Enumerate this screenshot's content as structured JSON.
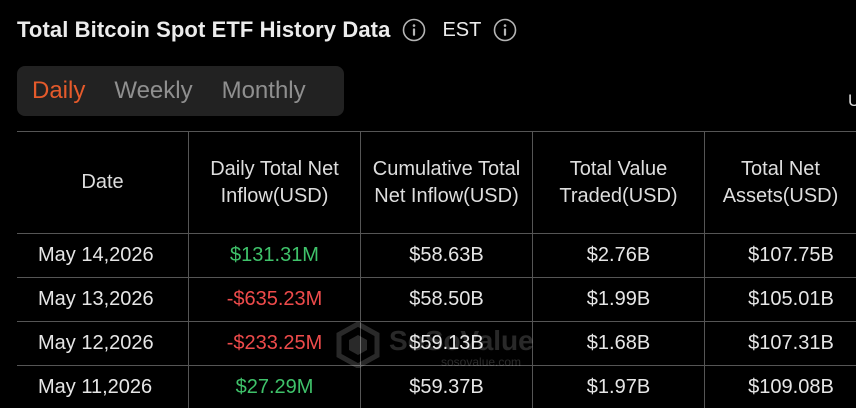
{
  "header": {
    "title": "Total Bitcoin Spot ETF History Data",
    "timezone": "EST"
  },
  "tabs": [
    {
      "label": "Daily",
      "active": true
    },
    {
      "label": "Weekly",
      "active": false
    },
    {
      "label": "Monthly",
      "active": false
    }
  ],
  "stray_char": "U",
  "table": {
    "columns": [
      "Date",
      "Daily Total Net Inflow(USD)",
      "Cumulative Total Net Inflow(USD)",
      "Total Value Traded(USD)",
      "Total Net Assets(USD)"
    ],
    "rows": [
      {
        "date": "May 14,2026",
        "daily_net_inflow": "$131.31M",
        "cumulative": "$58.63B",
        "value_traded": "$2.76B",
        "net_assets": "$107.75B",
        "sign": "positive"
      },
      {
        "date": "May 13,2026",
        "daily_net_inflow": "-$635.23M",
        "cumulative": "$58.50B",
        "value_traded": "$1.99B",
        "net_assets": "$105.01B",
        "sign": "negative"
      },
      {
        "date": "May 12,2026",
        "daily_net_inflow": "-$233.25M",
        "cumulative": "$59.13B",
        "value_traded": "$1.68B",
        "net_assets": "$107.31B",
        "sign": "negative"
      },
      {
        "date": "May 11,2026",
        "daily_net_inflow": "$27.29M",
        "cumulative": "$59.37B",
        "value_traded": "$1.97B",
        "net_assets": "$109.08B",
        "sign": "positive"
      }
    ]
  },
  "watermark": {
    "brand": "SoSoValue",
    "url": "sosovalue.com"
  },
  "colors": {
    "background": "#000000",
    "tab_active": "#e55a2b",
    "positive": "#3fc26a",
    "negative": "#ee4b4b"
  },
  "icons": [
    "info-icon",
    "watermark-logo-icon"
  ]
}
